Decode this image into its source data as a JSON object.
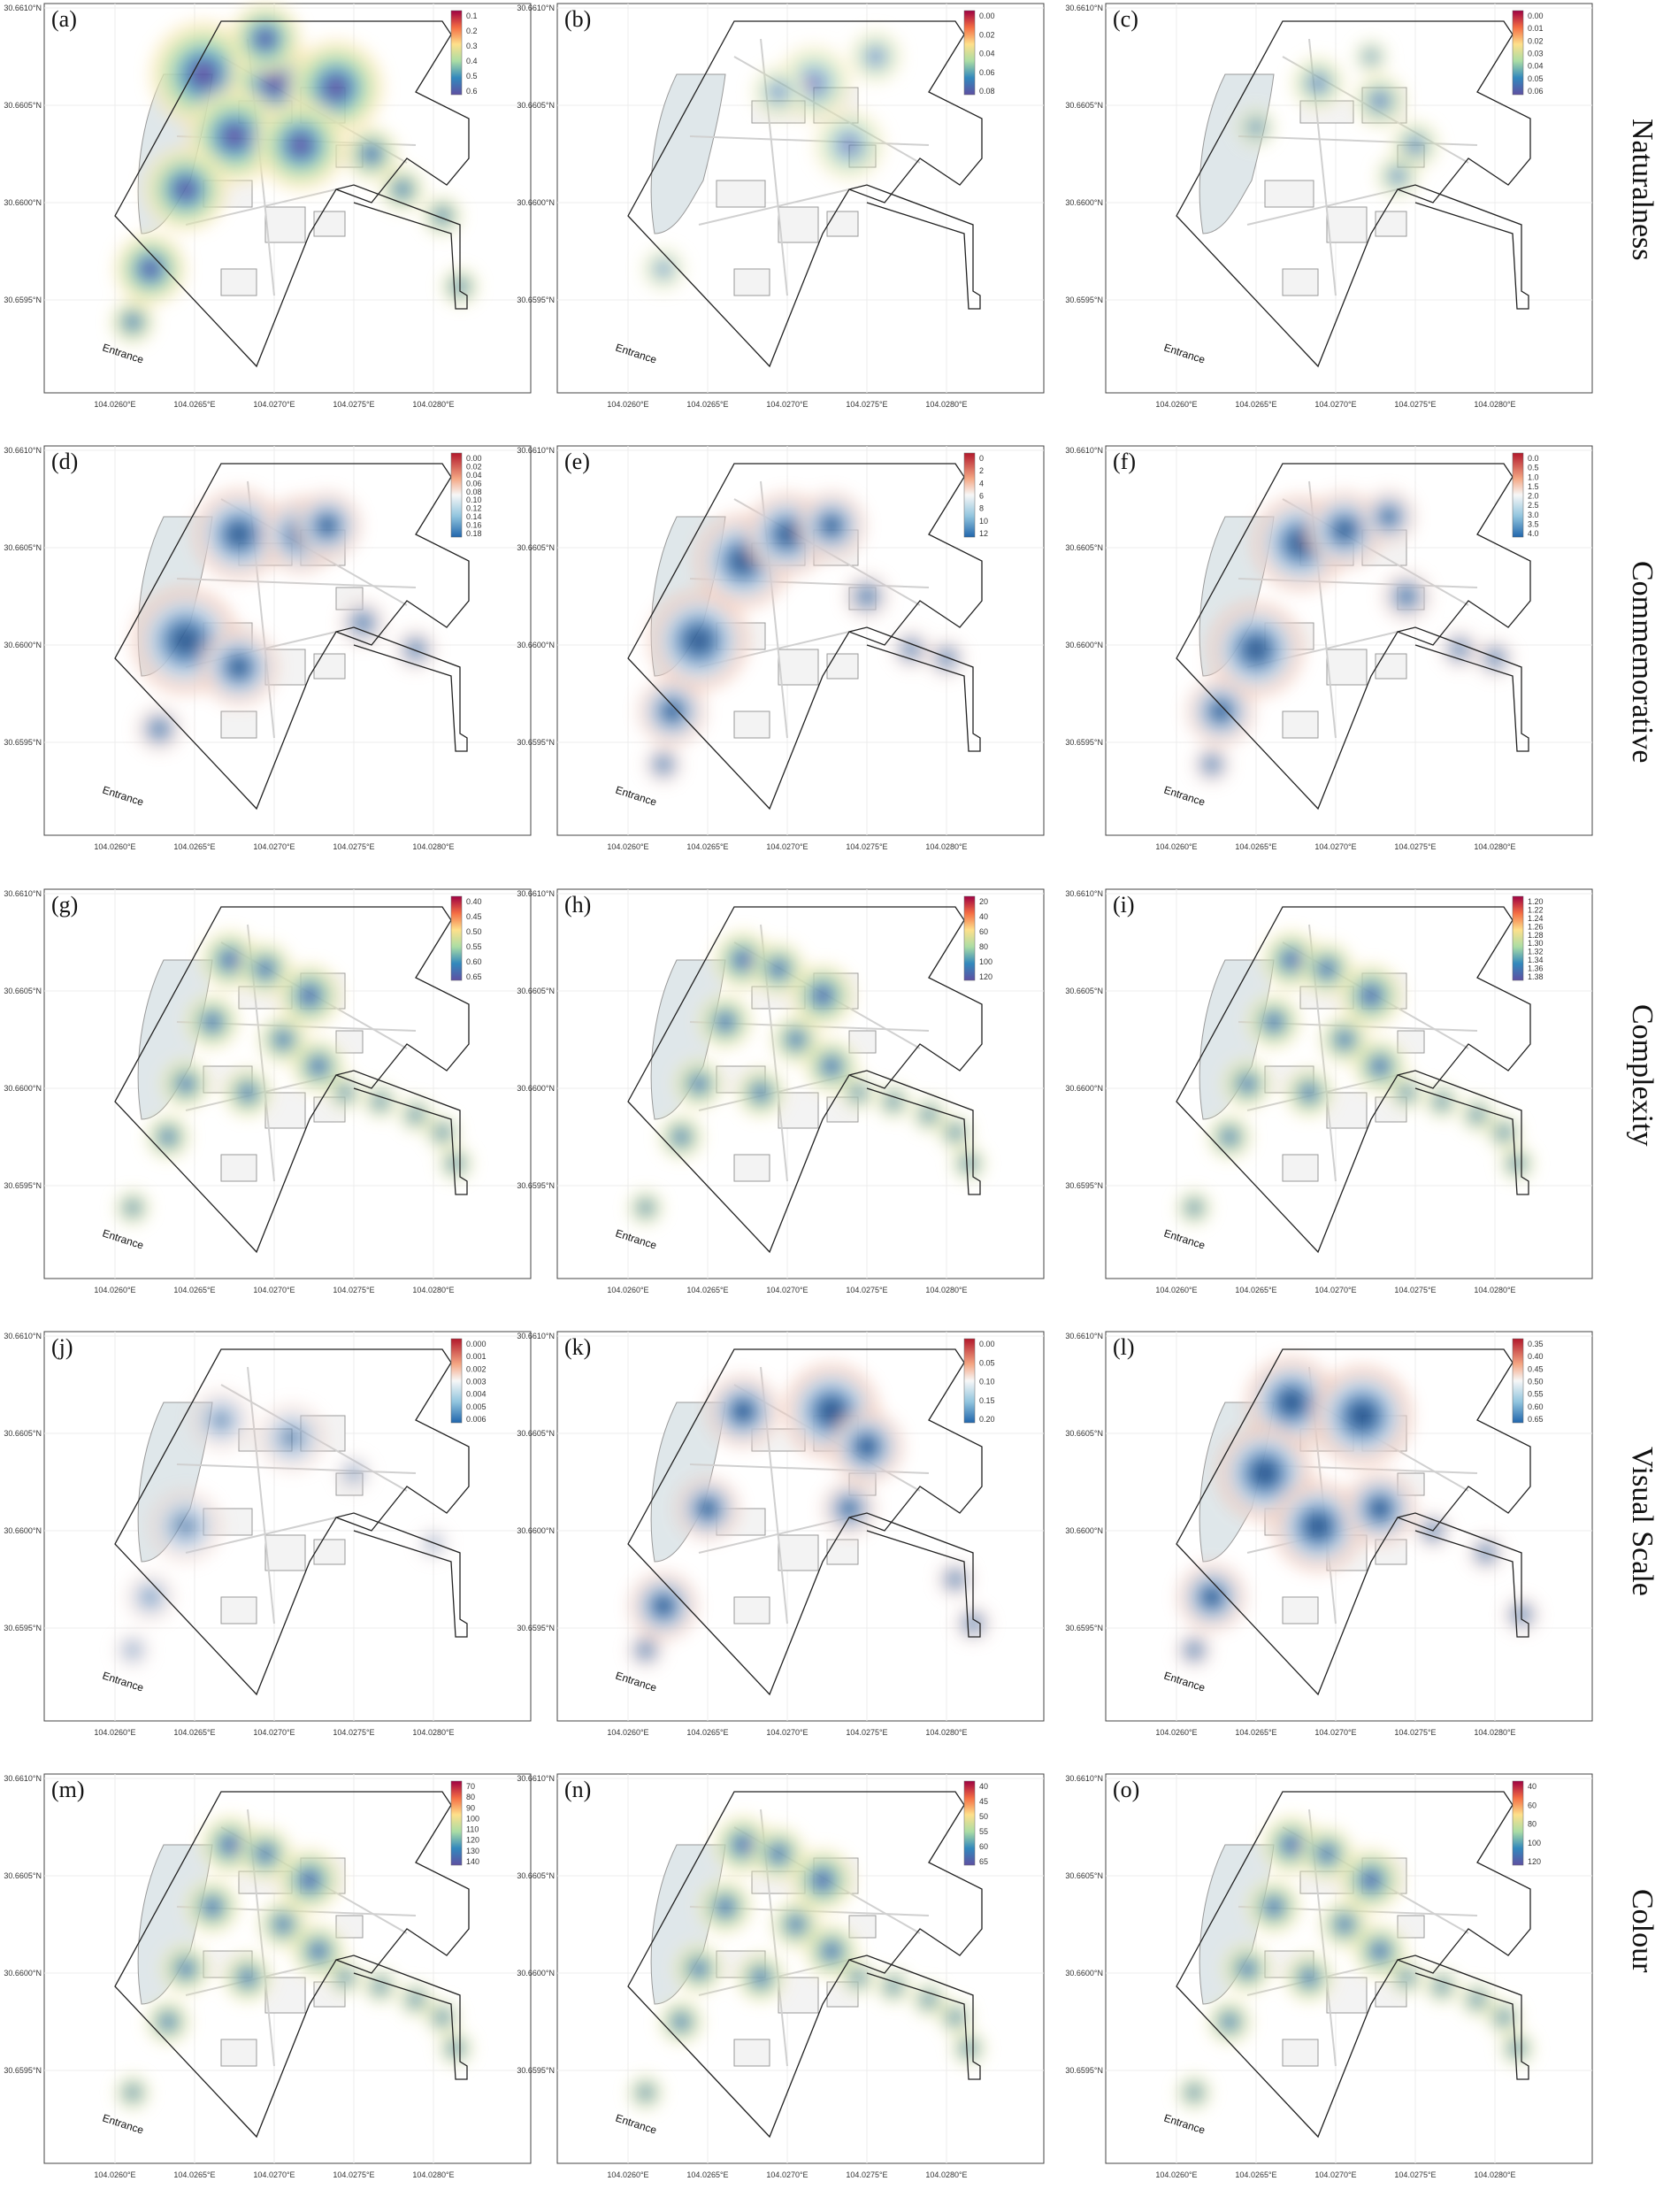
{
  "figure": {
    "x_ticks": [
      "104.0260°E",
      "104.0265°E",
      "104.0270°E",
      "104.0275°E",
      "104.0280°E"
    ],
    "y_ticks": [
      "30.6610°N",
      "30.6605°N",
      "30.6600°N",
      "30.6595°N"
    ],
    "entrance_label": "Entrance",
    "rows": [
      {
        "label": "Naturalness",
        "panels": [
          {
            "tag": "(a)",
            "legend": [
              "0.1",
              "0.2",
              "0.3",
              "0.4",
              "0.5",
              "0.6"
            ],
            "palette": "spectral",
            "intensity": 0.9
          },
          {
            "tag": "(b)",
            "legend": [
              "0.00",
              "0.02",
              "0.04",
              "0.06",
              "0.08"
            ],
            "palette": "spectral",
            "intensity": 0.6
          },
          {
            "tag": "(c)",
            "legend": [
              "0.00",
              "0.01",
              "0.02",
              "0.03",
              "0.04",
              "0.05",
              "0.06"
            ],
            "palette": "spectral",
            "intensity": 0.7
          }
        ]
      },
      {
        "label": "Commemorative",
        "panels": [
          {
            "tag": "(d)",
            "legend": [
              "0.00",
              "0.02",
              "0.04",
              "0.06",
              "0.08",
              "0.10",
              "0.12",
              "0.14",
              "0.16",
              "0.18"
            ],
            "palette": "rdbu",
            "intensity": 0.9
          },
          {
            "tag": "(e)",
            "legend": [
              "0",
              "2",
              "4",
              "6",
              "8",
              "10",
              "12"
            ],
            "palette": "rdbu",
            "intensity": 0.9
          },
          {
            "tag": "(f)",
            "legend": [
              "0.0",
              "0.5",
              "1.0",
              "1.5",
              "2.0",
              "2.5",
              "3.0",
              "3.5",
              "4.0"
            ],
            "palette": "rdbu",
            "intensity": 0.9
          }
        ]
      },
      {
        "label": "Complexity",
        "panels": [
          {
            "tag": "(g)",
            "legend": [
              "0.40",
              "0.45",
              "0.50",
              "0.55",
              "0.60",
              "0.65"
            ],
            "palette": "spectral",
            "intensity": 0.9
          },
          {
            "tag": "(h)",
            "legend": [
              "20",
              "40",
              "60",
              "80",
              "100",
              "120"
            ],
            "palette": "spectral",
            "intensity": 0.9
          },
          {
            "tag": "(i)",
            "legend": [
              "1.20",
              "1.22",
              "1.24",
              "1.26",
              "1.28",
              "1.30",
              "1.32",
              "1.34",
              "1.36",
              "1.38"
            ],
            "palette": "spectral",
            "intensity": 0.9
          }
        ]
      },
      {
        "label": "Visual Scale",
        "panels": [
          {
            "tag": "(j)",
            "legend": [
              "0.000",
              "0.001",
              "0.002",
              "0.003",
              "0.004",
              "0.005",
              "0.006"
            ],
            "palette": "rdbu",
            "intensity": 0.6
          },
          {
            "tag": "(k)",
            "legend": [
              "0.00",
              "0.05",
              "0.10",
              "0.15",
              "0.20"
            ],
            "palette": "rdbu",
            "intensity": 0.95
          },
          {
            "tag": "(l)",
            "legend": [
              "0.35",
              "0.40",
              "0.45",
              "0.50",
              "0.55",
              "0.60",
              "0.65"
            ],
            "palette": "rdbu",
            "intensity": 0.95
          }
        ]
      },
      {
        "label": "Colour",
        "panels": [
          {
            "tag": "(m)",
            "legend": [
              "70",
              "80",
              "90",
              "100",
              "110",
              "120",
              "130",
              "140"
            ],
            "palette": "spectral",
            "intensity": 0.9
          },
          {
            "tag": "(n)",
            "legend": [
              "40",
              "45",
              "50",
              "55",
              "60",
              "65"
            ],
            "palette": "spectral",
            "intensity": 0.9
          },
          {
            "tag": "(o)",
            "legend": [
              "40",
              "60",
              "80",
              "100",
              "120"
            ],
            "palette": "spectral",
            "intensity": 0.9
          }
        ]
      }
    ]
  }
}
